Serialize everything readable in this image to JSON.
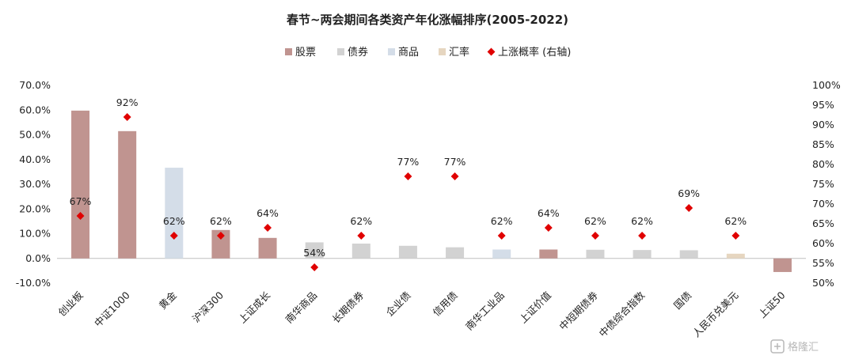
{
  "chart_data": {
    "type": "bar",
    "title": "春节~两会期间各类资产年化涨幅排序(2005-2022)",
    "categories": [
      "创业板",
      "中证1000",
      "黄金",
      "沪深300",
      "上证成长",
      "南华商品",
      "长期债券",
      "企业债",
      "信用债",
      "南华工业品",
      "上证价值",
      "中短期债券",
      "中债综合指数",
      "国债",
      "人民币兑美元",
      "上证50"
    ],
    "asset_class": [
      "股票",
      "股票",
      "商品",
      "股票",
      "股票",
      "债券",
      "债券",
      "债券",
      "债券",
      "商品",
      "股票",
      "债券",
      "债券",
      "债券",
      "汇率",
      "股票"
    ],
    "series": [
      {
        "name": "股票 / 债券 / 商品 / 汇率",
        "axis": "left",
        "values": [
          59.8,
          51.5,
          36.7,
          11.5,
          8.3,
          6.5,
          6.0,
          5.1,
          4.5,
          3.6,
          3.6,
          3.5,
          3.4,
          3.3,
          1.9,
          -5.5
        ]
      },
      {
        "name": "上涨概率 (右轴)",
        "axis": "right",
        "type": "scatter",
        "values": [
          67,
          92,
          62,
          62,
          64,
          54,
          62,
          77,
          77,
          62,
          64,
          62,
          62,
          69,
          62,
          null
        ],
        "labels": [
          "67%",
          "92%",
          "62%",
          "62%",
          "64%",
          "54%",
          "62%",
          "77%",
          "77%",
          "62%",
          "64%",
          "62%",
          "62%",
          "69%",
          "62%",
          ""
        ]
      }
    ],
    "legend": {
      "placement": "top",
      "entries": [
        {
          "name": "股票",
          "color": "#c09490",
          "shape": "square"
        },
        {
          "name": "债券",
          "color": "#d2d2d2",
          "shape": "square"
        },
        {
          "name": "商品",
          "color": "#d4dde8",
          "shape": "square"
        },
        {
          "name": "汇率",
          "color": "#e6d6c0",
          "shape": "square"
        },
        {
          "name": "上涨概率 (右轴)",
          "color": "#e00000",
          "shape": "diamond"
        }
      ]
    },
    "class_colors": {
      "股票": "#c09490",
      "债券": "#d2d2d2",
      "商品": "#d4dde8",
      "汇率": "#e6d6c0"
    },
    "marker_color": "#e00000",
    "y_left": {
      "min": -10,
      "max": 70,
      "step": 10,
      "ticks": [
        "-10.0%",
        "0.0%",
        "10.0%",
        "20.0%",
        "30.0%",
        "40.0%",
        "50.0%",
        "60.0%",
        "70.0%"
      ]
    },
    "y_right": {
      "min": 50,
      "max": 100,
      "step": 5,
      "ticks": [
        "50%",
        "55%",
        "60%",
        "65%",
        "70%",
        "75%",
        "80%",
        "85%",
        "90%",
        "95%",
        "100%"
      ]
    },
    "grid": false
  },
  "watermark": "格隆汇"
}
